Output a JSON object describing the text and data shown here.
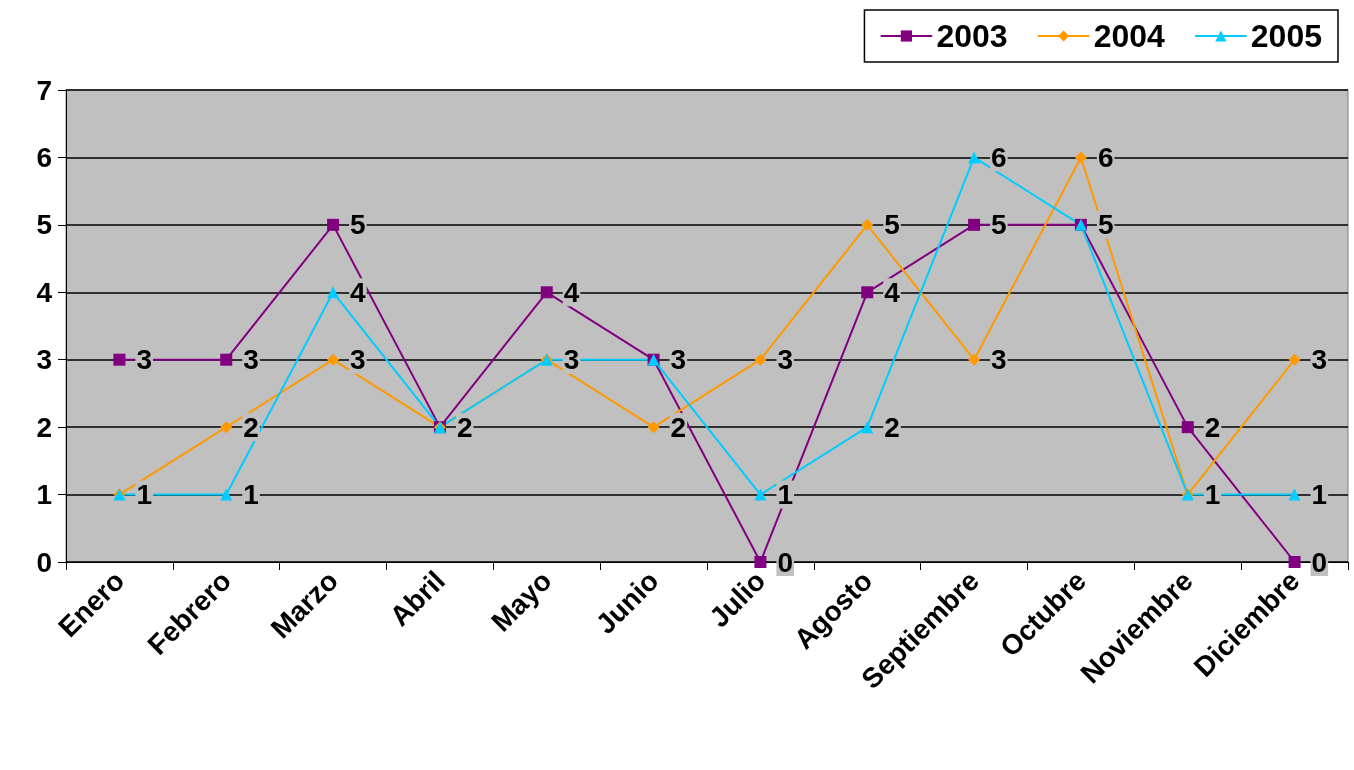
{
  "chart_data": {
    "type": "line",
    "categories": [
      "Enero",
      "Febrero",
      "Marzo",
      "Abril",
      "Mayo",
      "Junio",
      "Julio",
      "Agosto",
      "Septiembre",
      "Octubre",
      "Noviembre",
      "Diciembre"
    ],
    "series": [
      {
        "name": "2003",
        "color": "#800080",
        "marker": "square",
        "values": [
          3,
          3,
          5,
          2,
          4,
          3,
          0,
          4,
          5,
          5,
          2,
          0
        ],
        "value_labels": [
          "3",
          "3",
          "5",
          "2",
          "4",
          "3",
          "0",
          "4",
          "5",
          "5",
          "2",
          "0"
        ]
      },
      {
        "name": "2004",
        "color": "#ff9900",
        "marker": "diamond",
        "values": [
          1,
          2,
          3,
          2,
          3,
          2,
          3,
          5,
          3,
          6,
          1,
          3
        ],
        "value_labels": [
          "1",
          "2",
          "3",
          null,
          "3",
          "2",
          "3",
          "5",
          "3",
          "6",
          "1",
          "3"
        ]
      },
      {
        "name": "2005",
        "color": "#00ccff",
        "marker": "triangle",
        "values": [
          1,
          1,
          4,
          2,
          3,
          3,
          1,
          2,
          6,
          5,
          1,
          1
        ],
        "value_labels": [
          null,
          "1",
          "4",
          null,
          null,
          null,
          "1",
          "2",
          "6",
          null,
          null,
          "1"
        ]
      }
    ],
    "ylim": [
      0,
      7
    ],
    "yticks": [
      0,
      1,
      2,
      3,
      4,
      5,
      6,
      7
    ],
    "grid": "y",
    "legend": "top right",
    "line_style": "solid"
  }
}
